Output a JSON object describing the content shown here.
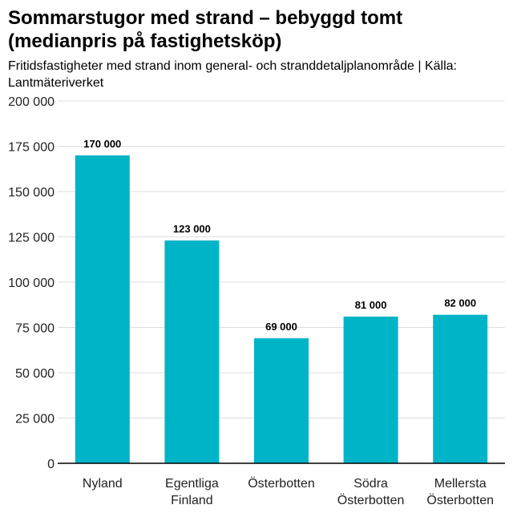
{
  "chart_data": {
    "type": "bar",
    "title": "Sommarstugor med strand – bebyggd tomt (medianpris på fastighetsköp)",
    "subtitle": "Fritidsfastigheter med strand inom general- och stranddetaljplanområde | Källa: Lantmäteriverket",
    "categories": [
      "Nyland",
      "Egentliga Finland",
      "Österbotten",
      "Södra Österbotten",
      "Mellersta Österbotten"
    ],
    "category_lines": [
      [
        "Nyland"
      ],
      [
        "Egentliga",
        "Finland"
      ],
      [
        "Österbotten"
      ],
      [
        "Södra",
        "Österbotten"
      ],
      [
        "Mellersta",
        "Österbotten"
      ]
    ],
    "values": [
      170000,
      123000,
      69000,
      81000,
      82000
    ],
    "data_labels": [
      "170 000",
      "123 000",
      "69 000",
      "81 000",
      "82 000"
    ],
    "ylim": [
      0,
      200000
    ],
    "yticks": [
      0,
      25000,
      50000,
      75000,
      100000,
      125000,
      150000,
      175000,
      200000
    ],
    "ytick_labels": [
      "0",
      "25 000",
      "50 000",
      "75 000",
      "100 000",
      "125 000",
      "150 000",
      "175 000",
      "200 000"
    ],
    "xlabel": "",
    "ylabel": "",
    "grid": true,
    "colors": {
      "bar": "#00b4c8",
      "grid": "#dddddd",
      "axis": "#000000"
    }
  }
}
